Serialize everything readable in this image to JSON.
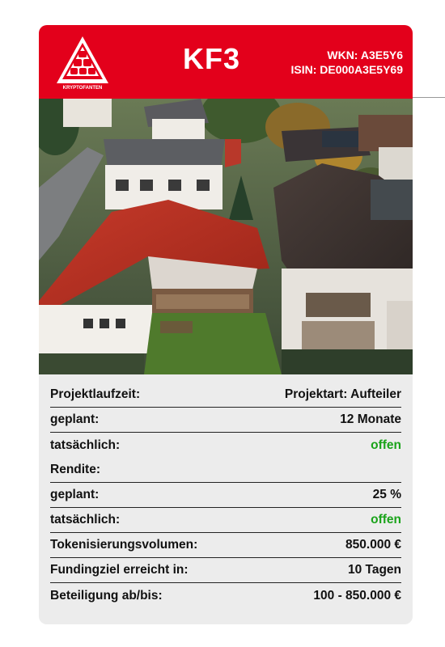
{
  "header": {
    "logo_text": "KRYPTOFANTEN",
    "title": "KF3",
    "wkn": "WKN: A3E5Y6",
    "isin": "ISIN: DE000A3E5Y69",
    "brand_color": "#e3001b"
  },
  "photo": {
    "icon": "aerial-house-photo"
  },
  "details": {
    "rows": [
      {
        "label": "Projektlaufzeit:",
        "value": "Projektart: Aufteiler",
        "status": "normal"
      },
      {
        "label": "geplant:",
        "value": "12 Monate",
        "status": "normal"
      },
      {
        "label": "tatsächlich:",
        "value": "offen",
        "status": "green"
      },
      {
        "label": "Rendite:",
        "value": "",
        "status": "normal"
      },
      {
        "label": "geplant:",
        "value": "25 %",
        "status": "normal"
      },
      {
        "label": "tatsächlich:",
        "value": "offen",
        "status": "green"
      },
      {
        "label": "Tokenisierungsvolumen:",
        "value": "850.000 €",
        "status": "normal"
      },
      {
        "label": "Fundingziel erreicht in:",
        "value": "10 Tagen",
        "status": "normal"
      },
      {
        "label": "Beteiligung ab/bis:",
        "value": "100 - 850.000 €",
        "status": "normal"
      }
    ],
    "green_color": "#1aa31a"
  }
}
